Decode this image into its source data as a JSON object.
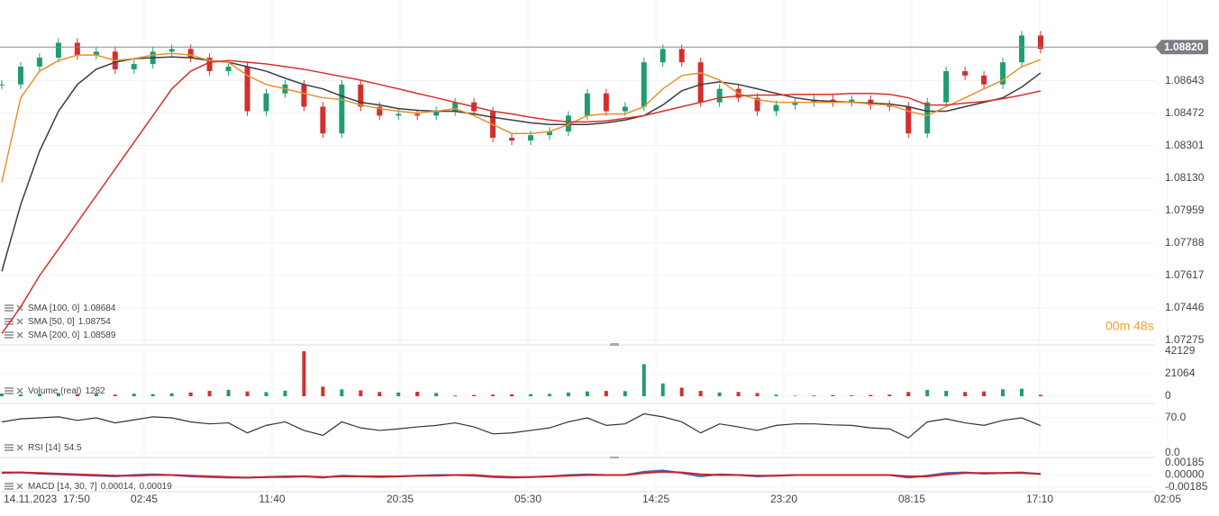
{
  "chart_data": [
    {
      "type": "candlestick",
      "ylim": [
        1.07256,
        1.09068
      ],
      "yticks": [
        1.07275,
        1.07446,
        1.07617,
        1.07788,
        1.07959,
        {
          "value": 1.0813,
          "label": "1.08130"
        },
        1.08301,
        1.08472,
        1.08643
      ],
      "current": {
        "value": 1.0882,
        "label": "1.08820"
      },
      "timer": "00m 48s",
      "up_color": "#1f9d6f",
      "down_color": "#d32f2f",
      "close": [
        1.08623,
        1.08717,
        1.08764,
        1.08843,
        1.08778,
        1.08796,
        1.08703,
        1.08731,
        1.08796,
        1.0881,
        1.08764,
        1.08693,
        1.08717,
        1.08482,
        1.08576,
        1.08623,
        1.08506,
        1.08365,
        1.08623,
        1.08506,
        1.08459,
        1.08468,
        1.08459,
        1.08482,
        1.08529,
        1.08482,
        1.08342,
        1.08328,
        1.08356,
        1.08375,
        1.08459,
        1.08576,
        1.08482,
        1.08506,
        1.0874,
        1.0881,
        1.0874,
        1.08529,
        1.086,
        1.08553,
        1.08482,
        1.08515,
        1.08529,
        1.08543,
        1.08529,
        1.08543,
        1.08515,
        1.08506,
        1.08365,
        1.08529,
        1.08693,
        1.0867,
        1.08623,
        1.0874,
        1.08881,
        1.0881
      ],
      "series": [
        {
          "name": "SMA [100, 0]",
          "last": 1.08684,
          "color": "#3d3d3d",
          "values": [
            1.07639,
            1.0799,
            1.08272,
            1.08482,
            1.08623,
            1.08703,
            1.0874,
            1.08759,
            1.08764,
            1.08768,
            1.08764,
            1.08749,
            1.0874,
            1.08717,
            1.08693,
            1.08656,
            1.08623,
            1.086,
            1.08562,
            1.08529,
            1.08515,
            1.08496,
            1.08487,
            1.08482,
            1.08482,
            1.08468,
            1.0845,
            1.08436,
            1.08421,
            1.08412,
            1.08412,
            1.08412,
            1.08421,
            1.08436,
            1.08459,
            1.08515,
            1.0859,
            1.08623,
            1.08637,
            1.08623,
            1.086,
            1.08576,
            1.08553,
            1.08539,
            1.08534,
            1.08529,
            1.08525,
            1.0852,
            1.08506,
            1.08482,
            1.08482,
            1.08506,
            1.08529,
            1.08553,
            1.08609,
            1.08684
          ]
        },
        {
          "name": "SMA [50, 0]",
          "last": 1.08754,
          "color": "#e8912d",
          "values": [
            1.08108,
            1.08553,
            1.08693,
            1.08749,
            1.08778,
            1.08778,
            1.08749,
            1.08759,
            1.08778,
            1.08787,
            1.08778,
            1.08749,
            1.0874,
            1.0867,
            1.08623,
            1.086,
            1.08576,
            1.08553,
            1.08543,
            1.08515,
            1.08496,
            1.08482,
            1.08473,
            1.08482,
            1.08496,
            1.08459,
            1.08412,
            1.08365,
            1.08365,
            1.08375,
            1.08412,
            1.08459,
            1.08468,
            1.08468,
            1.08506,
            1.086,
            1.0867,
            1.08684,
            1.08646,
            1.08576,
            1.08543,
            1.08529,
            1.08529,
            1.08529,
            1.08529,
            1.08529,
            1.0852,
            1.08515,
            1.08482,
            1.08459,
            1.08506,
            1.08553,
            1.086,
            1.08646,
            1.08717,
            1.08754
          ]
        },
        {
          "name": "SMA [200, 0]",
          "last": 1.08589,
          "color": "#d9302c",
          "values": [
            1.07311,
            1.07452,
            1.07616,
            1.07756,
            1.07897,
            1.08037,
            1.08178,
            1.08318,
            1.08459,
            1.086,
            1.08693,
            1.0874,
            1.08749,
            1.0874,
            1.08731,
            1.08717,
            1.08703,
            1.08684,
            1.08665,
            1.08646,
            1.08623,
            1.086,
            1.08576,
            1.08553,
            1.08529,
            1.08506,
            1.08482,
            1.08468,
            1.0845,
            1.08436,
            1.08426,
            1.08426,
            1.08431,
            1.08445,
            1.08459,
            1.08482,
            1.08506,
            1.08529,
            1.08553,
            1.08562,
            1.08567,
            1.08567,
            1.08571,
            1.08571,
            1.08571,
            1.08576,
            1.08576,
            1.08571,
            1.08553,
            1.08515,
            1.08515,
            1.08525,
            1.08534,
            1.08548,
            1.08567,
            1.08589
          ]
        }
      ]
    },
    {
      "type": "bar",
      "name": "Volume (real)",
      "last": 1282,
      "ylim": [
        0,
        42129
      ],
      "yticks": [
        0,
        21064,
        42129
      ],
      "values": [
        2500,
        1800,
        2200,
        3000,
        2000,
        2600,
        1500,
        2400,
        2000,
        2800,
        3500,
        5000,
        6000,
        4500,
        3800,
        5200,
        42000,
        9000,
        6500,
        5500,
        4000,
        3500,
        4200,
        3000,
        800,
        1200,
        1500,
        1800,
        2000,
        2200,
        3500,
        4500,
        5000,
        4800,
        30000,
        12000,
        8000,
        5000,
        3500,
        4000,
        3000,
        1500,
        500,
        800,
        1000,
        900,
        1200,
        1500,
        4000,
        6000,
        5000,
        4000,
        4500,
        6500,
        7000,
        1282
      ]
    },
    {
      "type": "line",
      "name": "RSI [14]",
      "last": 54.5,
      "ylim": [
        0,
        100
      ],
      "yticks": [
        {
          "value": 0,
          "label": "0.0"
        },
        {
          "value": 70,
          "label": "70.0"
        }
      ],
      "series": [
        {
          "color": "#333333",
          "values": [
            62,
            68,
            70,
            72,
            65,
            70,
            60,
            66,
            72,
            70,
            62,
            58,
            60,
            40,
            55,
            62,
            45,
            35,
            62,
            50,
            45,
            48,
            52,
            55,
            60,
            52,
            38,
            40,
            45,
            50,
            62,
            70,
            55,
            58,
            78,
            72,
            62,
            40,
            58,
            52,
            45,
            55,
            58,
            58,
            56,
            55,
            50,
            48,
            30,
            62,
            68,
            60,
            55,
            65,
            70,
            54.5
          ]
        }
      ]
    },
    {
      "type": "line",
      "name": "MACD [14, 30, 7]",
      "last": [
        0.00014,
        0.00019
      ],
      "last_labels": [
        "0.00014,",
        "0.00019"
      ],
      "ylim": [
        -0.00185,
        0.00185
      ],
      "yticks": [
        -0.00185,
        {
          "value": 0,
          "label": "0.00000"
        },
        0.00185
      ],
      "series": [
        {
          "color": "#3b6fc4",
          "values": [
            0.0003,
            0.0004,
            0.0002,
            0.0001,
            0,
            -0.0001,
            -0.0002,
            0,
            0.0001,
            0,
            -0.0002,
            -0.0003,
            -0.0004,
            -0.0004,
            -0.0003,
            -0.0002,
            -0.0002,
            -0.0004,
            -0.0001,
            -0.0002,
            -0.0003,
            -0.0002,
            -0.0001,
            0,
            0,
            -0.0001,
            -0.0003,
            -0.0004,
            -0.0003,
            -0.0002,
            0,
            0.0001,
            0,
            0,
            0.0005,
            0.0007,
            0.0003,
            -0.0002,
            0.0001,
            0,
            -0.0002,
            -0.0001,
            0,
            0,
            0,
            0,
            0,
            0,
            -0.0004,
            -0.0001,
            0.0003,
            0.0004,
            0.0002,
            0.0003,
            0.0004,
            0.00014
          ]
        },
        {
          "color": "#cc2222",
          "values": [
            0.0004,
            0.0004,
            0.0003,
            0.0002,
            0.0001,
            0,
            -0.0001,
            -0.0001,
            0,
            0,
            -0.0001,
            -0.0002,
            -0.0003,
            -0.0004,
            -0.0003,
            -0.0003,
            -0.0002,
            -0.0003,
            -0.0002,
            -0.0002,
            -0.0002,
            -0.0002,
            -0.0001,
            -0.0001,
            0,
            0,
            -0.0002,
            -0.0003,
            -0.0003,
            -0.0002,
            -0.0001,
            0,
            0,
            0,
            0.0003,
            0.0005,
            0.0004,
            0.0001,
            0,
            0,
            -0.0001,
            -0.0001,
            0,
            0,
            0,
            0,
            0,
            0,
            -0.0002,
            -0.0002,
            0.0001,
            0.0003,
            0.0003,
            0.0003,
            0.0003,
            0.00019
          ]
        }
      ]
    }
  ],
  "time_axis": {
    "labels": [
      "14.11.2023  17:50",
      "02:45",
      "11:40",
      "20:35",
      "05:30",
      "14:25",
      "23:20",
      "08:15",
      "17:10",
      "02:05"
    ]
  }
}
